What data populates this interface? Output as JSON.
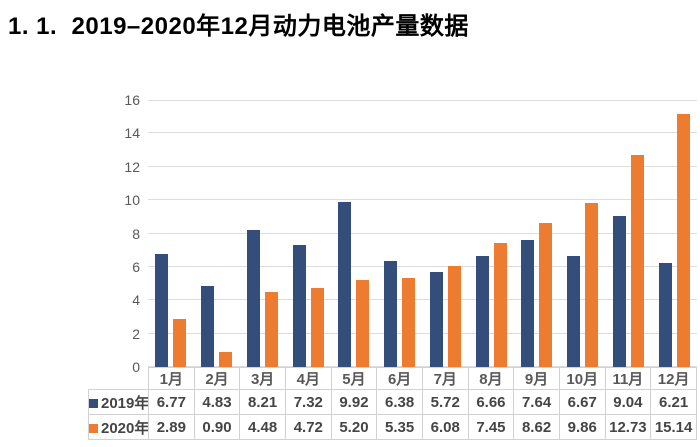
{
  "page": {
    "title": "1. 1.  2019–2020年12月动力电池产量数据"
  },
  "chart_data": {
    "type": "bar",
    "title": "1. 1.  2019–2020年12月动力电池产量数据",
    "categories": [
      "1月",
      "2月",
      "3月",
      "4月",
      "5月",
      "6月",
      "7月",
      "8月",
      "9月",
      "10月",
      "11月",
      "12月"
    ],
    "series": [
      {
        "name": "2019年",
        "color": "#334E7B",
        "values": [
          6.77,
          4.83,
          8.21,
          7.32,
          9.92,
          6.38,
          5.72,
          6.66,
          7.64,
          6.67,
          9.04,
          6.21
        ]
      },
      {
        "name": "2020年",
        "color": "#ED7C31",
        "values": [
          2.89,
          0.9,
          4.48,
          4.72,
          5.2,
          5.35,
          6.08,
          7.45,
          8.62,
          9.86,
          12.73,
          15.14
        ]
      }
    ],
    "xlabel": "",
    "ylabel": "",
    "ylim": [
      0,
      16
    ],
    "ytick_step": 2,
    "yticks": [
      0,
      2,
      4,
      6,
      8,
      10,
      12,
      14,
      16
    ],
    "grid": true,
    "gridline_color": "#DDDDDD",
    "axis_text_color": "#595959",
    "table_text_color": "#454545",
    "table_border_color": "#D2D2D2",
    "value_decimals": 2,
    "legend_position": "data-table-left"
  }
}
